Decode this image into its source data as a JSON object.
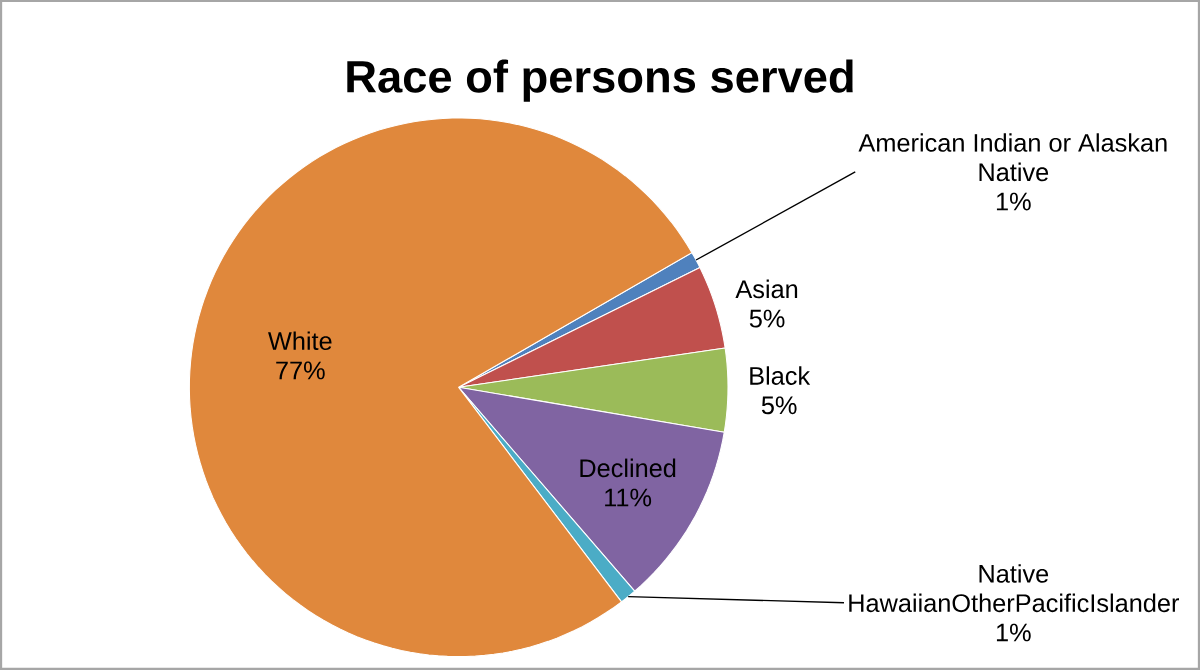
{
  "chart_data": {
    "type": "pie",
    "title": "Race of persons served",
    "categories": [
      "American Indian or Alaskan Native",
      "Asian",
      "Black",
      "Declined",
      "Native HawaiianOtherPacificIslander",
      "White"
    ],
    "values": [
      1,
      5,
      5,
      11,
      1,
      77
    ],
    "value_labels": [
      "1%",
      "5%",
      "5%",
      "11%",
      "1%",
      "77%"
    ],
    "colors": [
      "#4f81bd",
      "#c0504d",
      "#9bbb59",
      "#8064a2",
      "#4bacc6",
      "#e0883c"
    ]
  }
}
